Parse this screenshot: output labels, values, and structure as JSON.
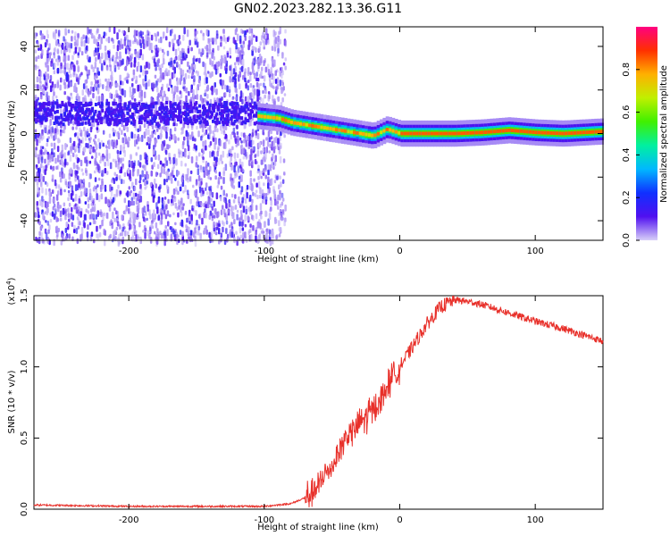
{
  "title": "GN02.2023.282.13.36.G11",
  "chart_data": [
    {
      "type": "heatmap",
      "xlabel": "Height of straight line (km)",
      "ylabel": "Frequency (Hz)",
      "xlim": [
        -270,
        150
      ],
      "ylim": [
        -49,
        49
      ],
      "xticks": [
        -200,
        -100,
        0,
        100
      ],
      "yticks": [
        40,
        20,
        0,
        -20,
        -40
      ],
      "colorbar": {
        "label": "Normalized spectral amplitude",
        "range": [
          0.0,
          1.0
        ],
        "ticks": [
          0.0,
          0.2,
          0.4,
          0.6,
          0.8
        ],
        "colors": [
          "#d8d0f8",
          "#5010f0",
          "#1030ff",
          "#00b8ff",
          "#00f0a0",
          "#40f000",
          "#c0f000",
          "#ffb000",
          "#ff3000",
          "#ff0080"
        ]
      },
      "noise_region": [
        -270,
        -95
      ],
      "signal_ridge": {
        "x": [
          -105,
          -90,
          -80,
          -70,
          -60,
          -50,
          -40,
          -30,
          -20,
          -10,
          0,
          20,
          40,
          60,
          80,
          100,
          120,
          150
        ],
        "y": [
          8,
          7,
          5,
          4,
          3,
          2,
          1,
          0,
          -1,
          2,
          0,
          0,
          0,
          0.5,
          1.5,
          0.5,
          0,
          1
        ]
      },
      "low_altitude_band": {
        "x": [
          -270,
          -100
        ],
        "y": [
          10,
          10
        ]
      }
    },
    {
      "type": "line",
      "xlabel": "Height of straight line (km)",
      "ylabel": "SNR (10 * v/v)",
      "yscale_label": "(x10",
      "yscale_exp": "4",
      "xlim": [
        -270,
        150
      ],
      "ylim": [
        0,
        1.5
      ],
      "xticks": [
        -200,
        -100,
        0,
        100
      ],
      "yticks": [
        0.0,
        0.5,
        1.0,
        1.5
      ],
      "series": [
        {
          "color": "#e8302a",
          "x": [
            -270,
            -200,
            -150,
            -100,
            -80,
            -70,
            -60,
            -55,
            -50,
            -45,
            -40,
            -35,
            -30,
            -25,
            -20,
            -15,
            -10,
            -5,
            0,
            10,
            20,
            30,
            40,
            50,
            60,
            80,
            100,
            120,
            150
          ],
          "values": [
            0.03,
            0.02,
            0.02,
            0.02,
            0.04,
            0.08,
            0.15,
            0.25,
            0.3,
            0.4,
            0.5,
            0.55,
            0.6,
            0.65,
            0.7,
            0.75,
            0.85,
            0.95,
            1.0,
            1.15,
            1.3,
            1.42,
            1.47,
            1.46,
            1.44,
            1.38,
            1.32,
            1.27,
            1.18
          ]
        }
      ]
    }
  ]
}
